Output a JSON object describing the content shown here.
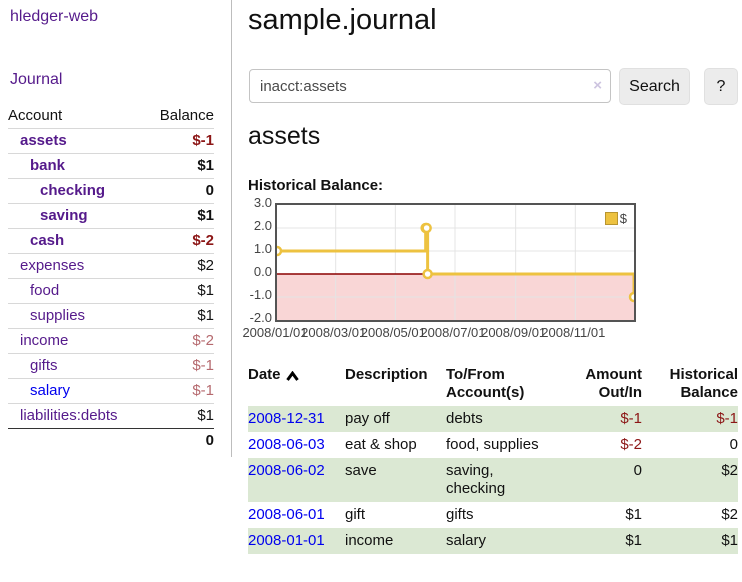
{
  "colors": {
    "link_purple": "#551a8b",
    "link_blue": "#0000ee",
    "negative_dark": "#8c1616",
    "negative_light": "#b5696e",
    "row_green": "#dbe8d3",
    "series_gold": "#edc240"
  },
  "sidebar": {
    "brand": "hledger-web",
    "nav_journal": "Journal",
    "accounts_header": {
      "account": "Account",
      "balance": "Balance"
    },
    "accounts": [
      {
        "name": "assets",
        "balance": "$-1"
      },
      {
        "name": "bank",
        "balance": "$1"
      },
      {
        "name": "checking",
        "balance": "0"
      },
      {
        "name": "saving",
        "balance": "$1"
      },
      {
        "name": "cash",
        "balance": "$-2"
      },
      {
        "name": "expenses",
        "balance": "$2"
      },
      {
        "name": "food",
        "balance": "$1"
      },
      {
        "name": "supplies",
        "balance": "$1"
      },
      {
        "name": "income",
        "balance": "$-2"
      },
      {
        "name": "gifts",
        "balance": "$-1"
      },
      {
        "name": "salary",
        "balance": "$-1"
      },
      {
        "name": "liabilities:debts",
        "balance": "$1"
      }
    ],
    "total": "0"
  },
  "main": {
    "title": "sample.journal",
    "search": {
      "value": "inacct:assets",
      "clear_icon": "×",
      "button": "Search",
      "help_button": "?"
    },
    "account_heading": "assets",
    "chart_label": "Historical Balance:"
  },
  "chart_data": {
    "type": "line",
    "title": "Historical Balance",
    "legend": [
      "$"
    ],
    "legend_position": "top-right",
    "grid": true,
    "ylim": [
      -2.0,
      3.0
    ],
    "y_ticks": [
      3.0,
      2.0,
      1.0,
      0.0,
      -1.0,
      -2.0
    ],
    "x_ticks": [
      {
        "label": "2008/01/01",
        "day": 0
      },
      {
        "label": "2008/03/01",
        "day": 60
      },
      {
        "label": "2008/05/01",
        "day": 121
      },
      {
        "label": "2008/07/01",
        "day": 182
      },
      {
        "label": "2008/09/01",
        "day": 244
      },
      {
        "label": "2008/11/01",
        "day": 305
      }
    ],
    "xlim_days": [
      0,
      365
    ],
    "points": [
      {
        "date": "2008-01-01",
        "day": 0,
        "value": 1
      },
      {
        "date": "2008-06-01",
        "day": 152,
        "value": 2
      },
      {
        "date": "2008-06-02",
        "day": 153,
        "value": 2
      },
      {
        "date": "2008-06-03",
        "day": 154,
        "value": 0
      },
      {
        "date": "2008-12-31",
        "day": 365,
        "value": -1
      }
    ],
    "series_color": "#edc240",
    "negative_region_fill": "#f9d6d6",
    "zero_line_color": "#8b0000"
  },
  "table": {
    "headers": {
      "date": "Date",
      "description": "Description",
      "tofrom1": "To/From",
      "tofrom2": "Account(s)",
      "amount1": "Amount",
      "amount2": "Out/In",
      "hist1": "Historical",
      "hist2": "Balance"
    },
    "rows": [
      {
        "date": "2008-12-31",
        "description": "pay off",
        "accounts": "debts",
        "amount": "$-1",
        "balance": "$-1"
      },
      {
        "date": "2008-06-03",
        "description": "eat & shop",
        "accounts": "food, supplies",
        "amount": "$-2",
        "balance": "0"
      },
      {
        "date": "2008-06-02",
        "description": "save",
        "accounts": "saving, checking",
        "amount": "0",
        "balance": "$2"
      },
      {
        "date": "2008-06-01",
        "description": "gift",
        "accounts": "gifts",
        "amount": "$1",
        "balance": "$2"
      },
      {
        "date": "2008-01-01",
        "description": "income",
        "accounts": "salary",
        "amount": "$1",
        "balance": "$1"
      }
    ]
  }
}
